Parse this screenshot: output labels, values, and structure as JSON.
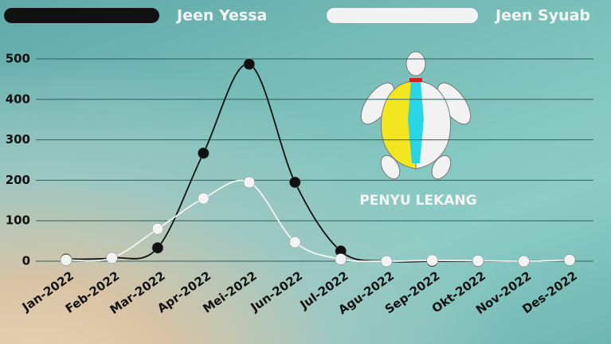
{
  "chart_data": {
    "type": "line",
    "annotation": "PENYU LEKANG",
    "categories": [
      "Jan-2022",
      "Feb-2022",
      "Mar-2022",
      "Apr-2022",
      "Mei-2022",
      "Jun-2022",
      "Jul-2022",
      "Agu-2022",
      "Sep-2022",
      "Okt-2022",
      "Nov-2022",
      "Des-2022"
    ],
    "series": [
      {
        "name": "Jeen Yessa",
        "color": "#111111",
        "values": [
          5,
          8,
          33,
          267,
          487,
          195,
          25,
          0,
          0,
          0,
          0,
          3
        ]
      },
      {
        "name": "Jeen Syuab",
        "color": "#f2f4f3",
        "values": [
          3,
          8,
          80,
          155,
          195,
          47,
          5,
          0,
          2,
          1,
          0,
          3
        ]
      }
    ],
    "ylim": [
      0,
      500
    ],
    "yticks": [
      0,
      100,
      200,
      300,
      400,
      500
    ],
    "grid": true,
    "smooth": true
  }
}
